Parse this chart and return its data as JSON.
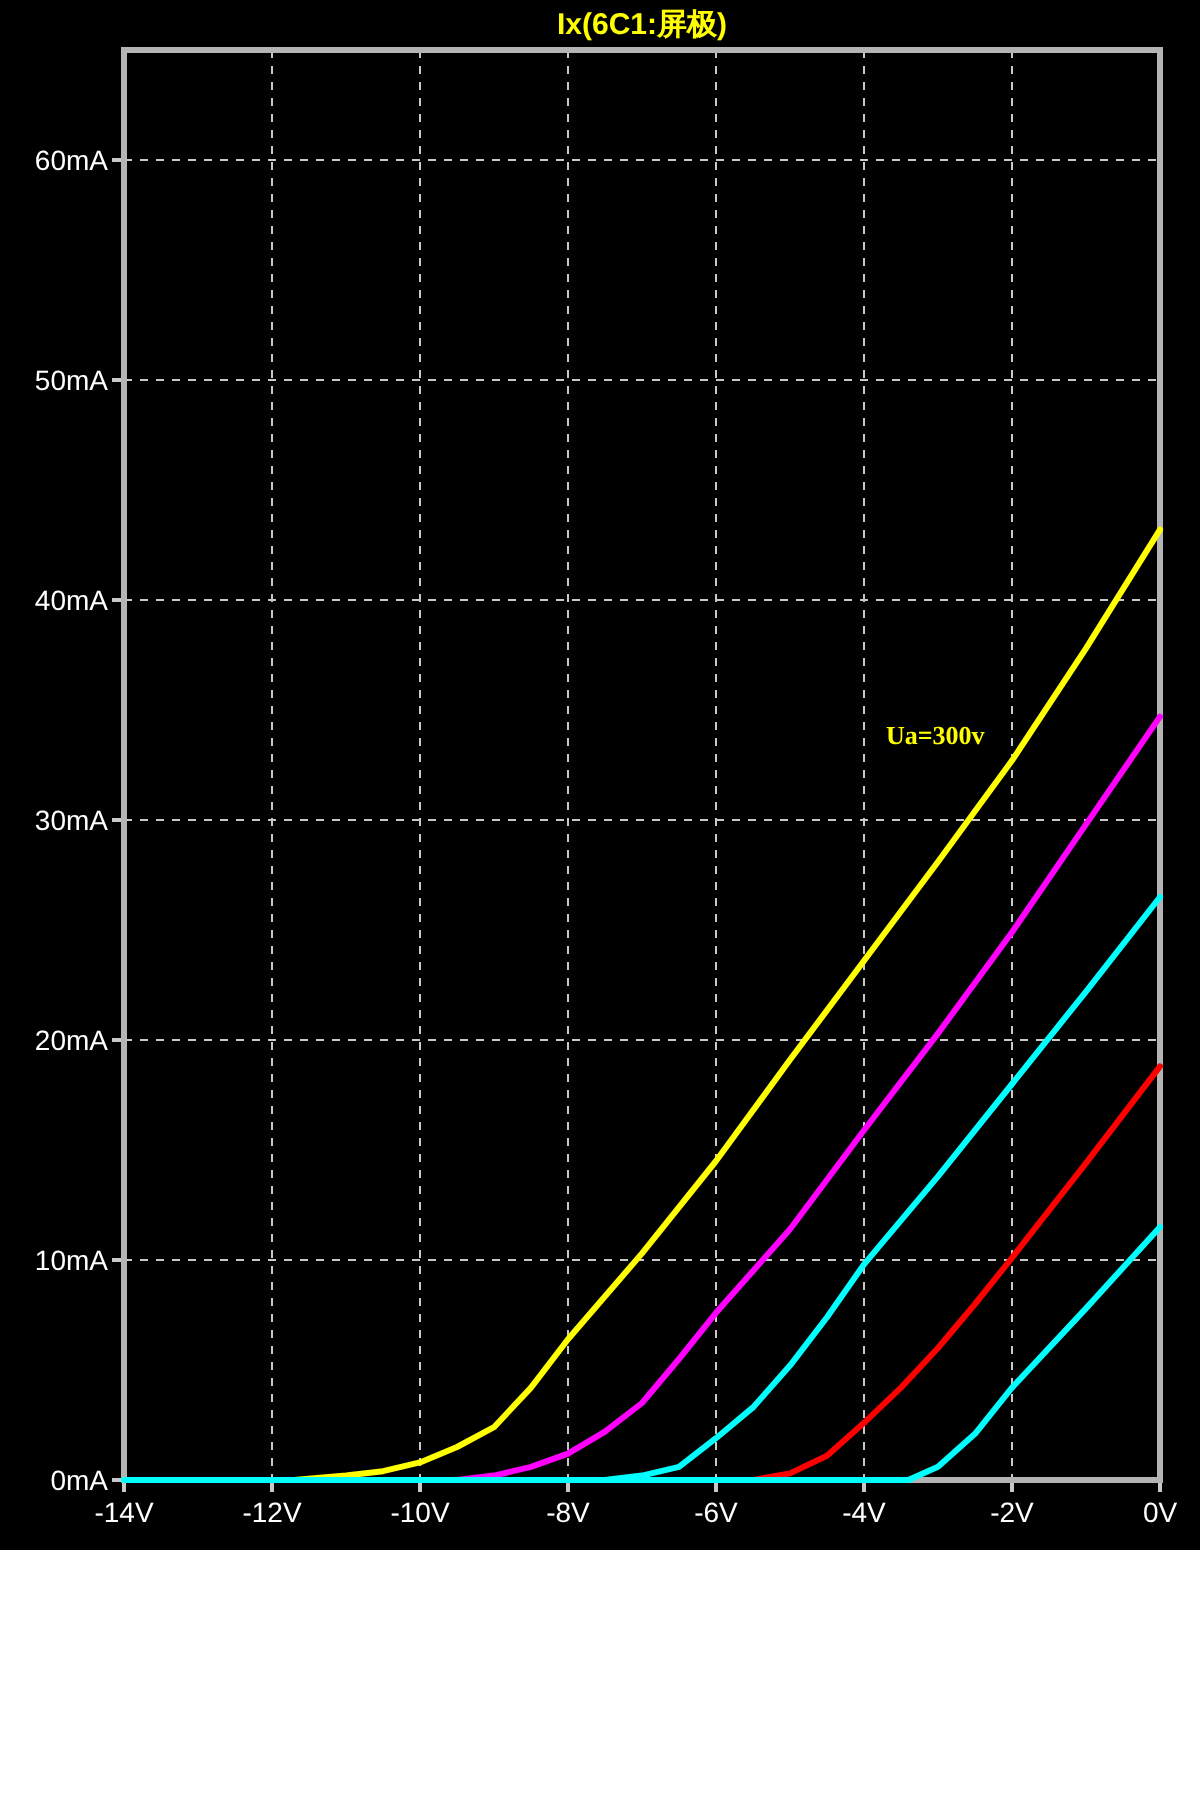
{
  "chart_data": {
    "type": "line",
    "title": "Ix(6C1:屏极)",
    "xlim": [
      -14,
      0
    ],
    "ylim": [
      0,
      65
    ],
    "grid": true,
    "xticks": [
      {
        "value": -14,
        "label": "-14V"
      },
      {
        "value": -12,
        "label": "-12V"
      },
      {
        "value": -10,
        "label": "-10V"
      },
      {
        "value": -8,
        "label": "-8V"
      },
      {
        "value": -6,
        "label": "-6V"
      },
      {
        "value": -4,
        "label": "-4V"
      },
      {
        "value": -2,
        "label": "-2V"
      },
      {
        "value": 0,
        "label": "0V"
      }
    ],
    "yticks": [
      {
        "value": 0,
        "label": "0mA"
      },
      {
        "value": 10,
        "label": "10mA"
      },
      {
        "value": 20,
        "label": "20mA"
      },
      {
        "value": 30,
        "label": "30mA"
      },
      {
        "value": 40,
        "label": "40mA"
      },
      {
        "value": 50,
        "label": "50mA"
      },
      {
        "value": 60,
        "label": "60mA"
      }
    ],
    "annotations": [
      "Ua=300v"
    ],
    "series": [
      {
        "color": "#ffff00",
        "x": [
          -14,
          -11.7,
          -11,
          -10.5,
          -10,
          -9.5,
          -9,
          -8.5,
          -8,
          -7,
          -6,
          -5,
          -4,
          -3,
          -2,
          -1,
          0
        ],
        "values": [
          0,
          0,
          0.2,
          0.4,
          0.8,
          1.5,
          2.4,
          4.2,
          6.4,
          10.3,
          14.5,
          19.1,
          23.6,
          28.1,
          32.7,
          37.8,
          43.2
        ]
      },
      {
        "color": "#ff00ff",
        "x": [
          -14,
          -9.5,
          -9,
          -8.5,
          -8,
          -7.5,
          -7,
          -6.5,
          -6,
          -5,
          -4,
          -3,
          -2,
          -1,
          0
        ],
        "values": [
          0,
          0,
          0.2,
          0.6,
          1.2,
          2.2,
          3.5,
          5.5,
          7.6,
          11.4,
          15.9,
          20.3,
          24.9,
          29.8,
          34.7
        ]
      },
      {
        "color": "#00ffff",
        "x": [
          -14,
          -7.5,
          -7,
          -6.5,
          -6,
          -5.5,
          -5,
          -4.5,
          -4,
          -3,
          -2,
          -1,
          0
        ],
        "values": [
          0,
          0,
          0.2,
          0.6,
          1.9,
          3.3,
          5.2,
          7.4,
          9.8,
          13.8,
          18,
          22.2,
          26.5
        ]
      },
      {
        "color": "#ff0000",
        "x": [
          -5.5,
          -5,
          -4.5,
          -4,
          -3.5,
          -3,
          -2.5,
          -2,
          -1,
          0
        ],
        "values": [
          0,
          0.3,
          1.1,
          2.6,
          4.2,
          6,
          8,
          10.1,
          14.4,
          18.8
        ]
      },
      {
        "color": "#00ffff",
        "x": [
          -14,
          -3.4,
          -3,
          -2.5,
          -2,
          -1,
          0
        ],
        "values": [
          0,
          0,
          0.6,
          2.1,
          4.2,
          7.8,
          11.5
        ]
      }
    ]
  }
}
